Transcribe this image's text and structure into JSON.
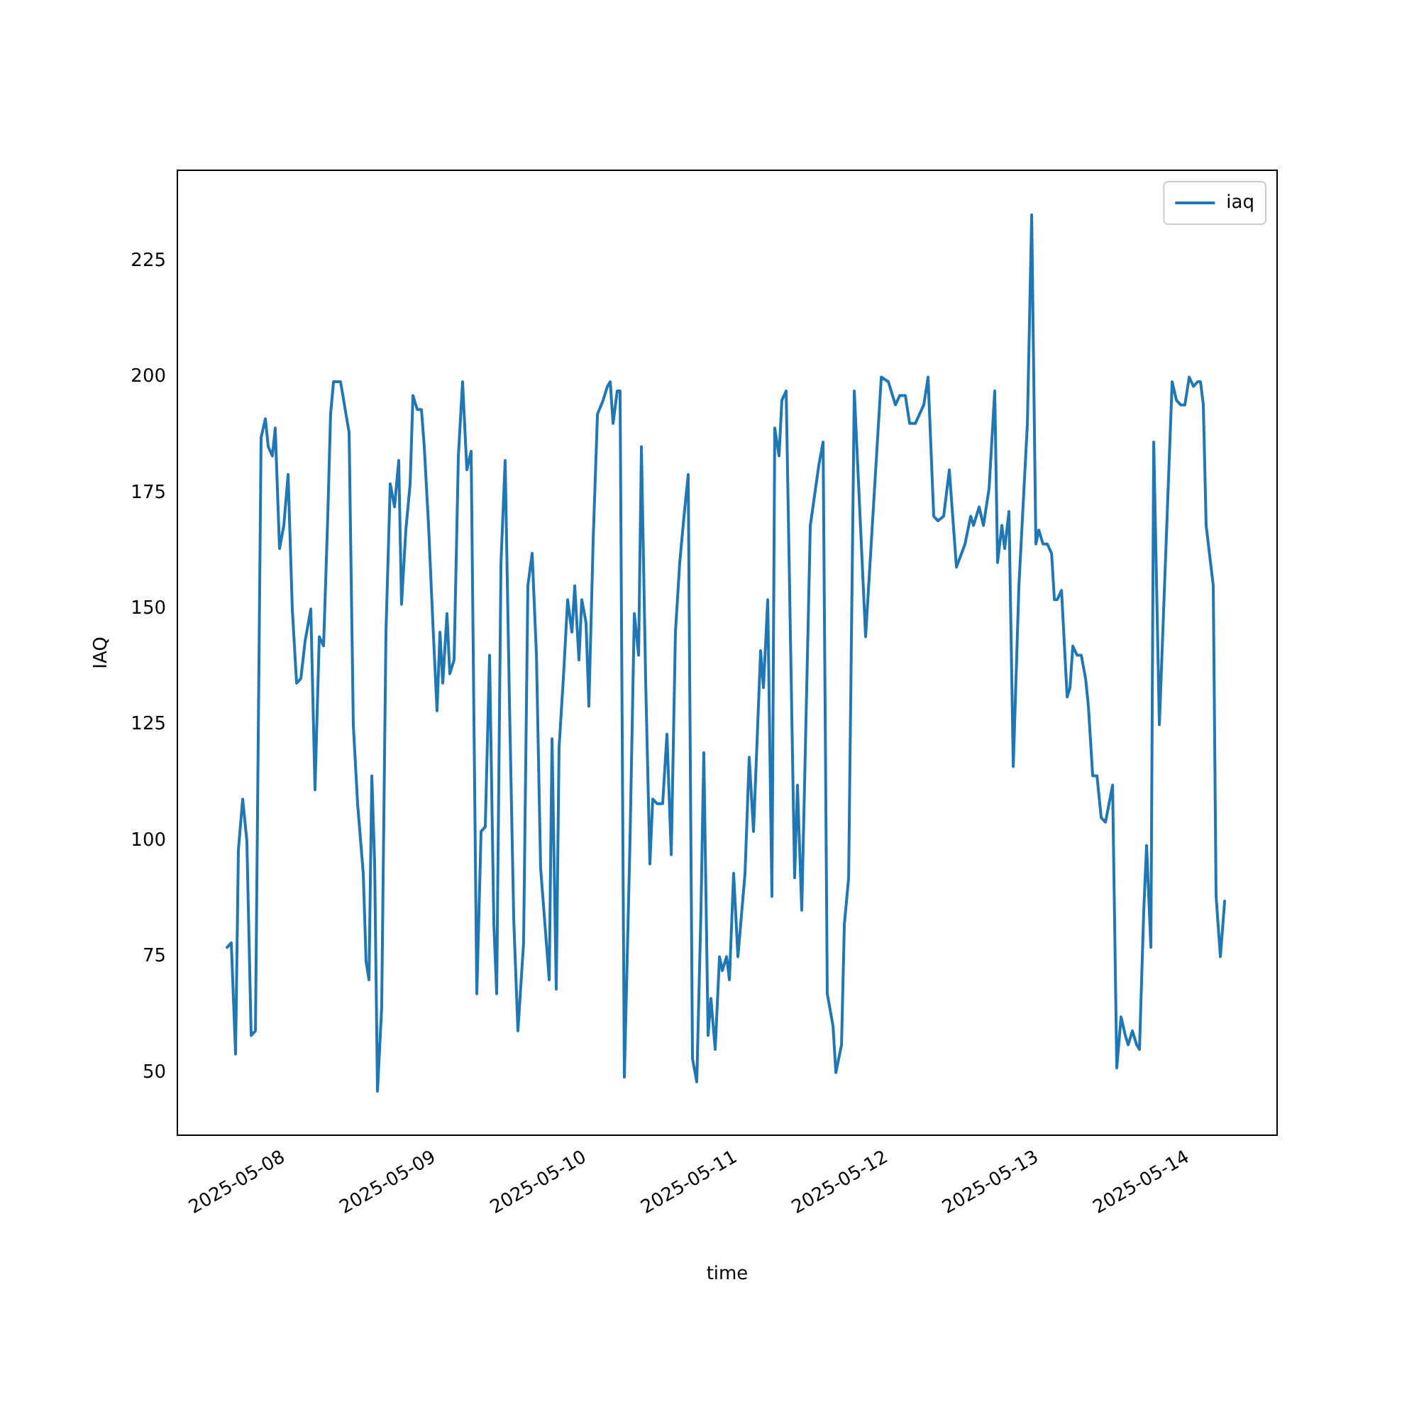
{
  "chart_data": {
    "type": "line",
    "xlabel": "time",
    "ylabel": "IAQ",
    "legend": "top right",
    "grid": false,
    "marker": "none",
    "line_style": "solid",
    "xlim": [
      "2025-05-07T07:03",
      "2025-05-14T14:11"
    ],
    "xticks": [
      "2025-05-08",
      "2025-05-09",
      "2025-05-10",
      "2025-05-11",
      "2025-05-12",
      "2025-05-13",
      "2025-05-14"
    ],
    "ylim": [
      36.5,
      244.6
    ],
    "yticks": [
      50,
      75,
      100,
      125,
      150,
      175,
      200,
      225
    ],
    "series": [
      {
        "name": "iaq",
        "color": "#1f77b4",
        "x": [
          "2025-05-07T14:58",
          "2025-05-07T15:38",
          "2025-05-07T16:19",
          "2025-05-07T16:46",
          "2025-05-07T17:27",
          "2025-05-07T18:07",
          "2025-05-07T18:48",
          "2025-05-07T19:29",
          "2025-05-07T20:23",
          "2025-05-07T21:04",
          "2025-05-07T21:31",
          "2025-05-07T22:11",
          "2025-05-07T22:38",
          "2025-05-07T23:19",
          "2025-05-08T00:00",
          "2025-05-08T00:41",
          "2025-05-08T01:21",
          "2025-05-08T02:02",
          "2025-05-08T02:43",
          "2025-05-08T03:23",
          "2025-05-08T04:18",
          "2025-05-08T04:58",
          "2025-05-08T05:39",
          "2025-05-08T06:20",
          "2025-05-08T07:00",
          "2025-05-08T07:27",
          "2025-05-08T07:55",
          "2025-05-08T09:02",
          "2025-05-08T10:24",
          "2025-05-08T11:04",
          "2025-05-08T11:45",
          "2025-05-08T12:39",
          "2025-05-08T13:06",
          "2025-05-08T13:34",
          "2025-05-08T14:01",
          "2025-05-08T14:28",
          "2025-05-08T14:55",
          "2025-05-08T15:35",
          "2025-05-08T16:16",
          "2025-05-08T16:57",
          "2025-05-08T17:38",
          "2025-05-08T18:18",
          "2025-05-08T18:45",
          "2025-05-08T19:26",
          "2025-05-08T20:07",
          "2025-05-08T20:34",
          "2025-05-08T21:15",
          "2025-05-08T21:55",
          "2025-05-08T22:22",
          "2025-05-08T23:03",
          "2025-05-08T23:44",
          "2025-05-09T00:24",
          "2025-05-09T00:52",
          "2025-05-09T01:19",
          "2025-05-09T01:59",
          "2025-05-09T02:26",
          "2025-05-09T03:07",
          "2025-05-09T03:48",
          "2025-05-09T04:28",
          "2025-05-09T05:09",
          "2025-05-09T05:50",
          "2025-05-09T06:44",
          "2025-05-09T07:25",
          "2025-05-09T08:05",
          "2025-05-09T08:46",
          "2025-05-09T09:27",
          "2025-05-09T09:54",
          "2025-05-09T10:35",
          "2025-05-09T11:15",
          "2025-05-09T11:56",
          "2025-05-09T12:37",
          "2025-05-09T13:17",
          "2025-05-09T14:11",
          "2025-05-09T14:52",
          "2025-05-09T15:33",
          "2025-05-09T16:14",
          "2025-05-09T16:54",
          "2025-05-09T17:35",
          "2025-05-09T18:16",
          "2025-05-09T18:43",
          "2025-05-09T19:23",
          "2025-05-09T19:50",
          "2025-05-09T20:31",
          "2025-05-09T21:12",
          "2025-05-09T21:53",
          "2025-05-09T22:20",
          "2025-05-09T23:00",
          "2025-05-09T23:27",
          "2025-05-10T00:08",
          "2025-05-10T00:35",
          "2025-05-10T01:16",
          "2025-05-10T01:57",
          "2025-05-10T02:51",
          "2025-05-10T03:32",
          "2025-05-10T03:59",
          "2025-05-10T04:26",
          "2025-05-10T05:06",
          "2025-05-10T05:33",
          "2025-05-10T06:14",
          "2025-05-10T07:08",
          "2025-05-10T07:49",
          "2025-05-10T08:30",
          "2025-05-10T08:57",
          "2025-05-10T09:38",
          "2025-05-10T10:18",
          "2025-05-10T10:45",
          "2025-05-10T11:26",
          "2025-05-10T12:20",
          "2025-05-10T13:01",
          "2025-05-10T13:42",
          "2025-05-10T14:22",
          "2025-05-10T15:03",
          "2025-05-10T15:44",
          "2025-05-10T16:24",
          "2025-05-10T17:05",
          "2025-05-10T17:46",
          "2025-05-10T18:26",
          "2025-05-10T18:53",
          "2025-05-10T19:34",
          "2025-05-10T20:01",
          "2025-05-10T20:42",
          "2025-05-10T21:23",
          "2025-05-10T21:50",
          "2025-05-10T22:31",
          "2025-05-10T22:58",
          "2025-05-10T23:38",
          "2025-05-11T00:19",
          "2025-05-11T01:27",
          "2025-05-11T02:07",
          "2025-05-11T02:48",
          "2025-05-11T03:56",
          "2025-05-11T04:23",
          "2025-05-11T05:04",
          "2025-05-11T05:44",
          "2025-05-11T06:11",
          "2025-05-11T06:52",
          "2025-05-11T07:19",
          "2025-05-11T08:00",
          "2025-05-11T09:21",
          "2025-05-11T09:48",
          "2025-05-11T10:29",
          "2025-05-11T11:51",
          "2025-05-11T13:12",
          "2025-05-11T13:53",
          "2025-05-11T14:33",
          "2025-05-11T15:28",
          "2025-05-11T15:55",
          "2025-05-11T16:49",
          "2025-05-11T17:16",
          "2025-05-11T17:57",
          "2025-05-11T18:51",
          "2025-05-11T20:39",
          "2025-05-11T23:09",
          "2025-05-12T00:16",
          "2025-05-12T01:24",
          "2025-05-12T02:05",
          "2025-05-12T02:59",
          "2025-05-12T03:40",
          "2025-05-12T04:34",
          "2025-05-12T05:55",
          "2025-05-12T06:36",
          "2025-05-12T07:30",
          "2025-05-12T08:11",
          "2025-05-12T09:05",
          "2025-05-12T09:59",
          "2025-05-12T11:07",
          "2025-05-12T12:29",
          "2025-05-12T13:23",
          "2025-05-12T13:50",
          "2025-05-12T14:44",
          "2025-05-12T15:25",
          "2025-05-12T16:19",
          "2025-05-12T17:13",
          "2025-05-12T17:40",
          "2025-05-12T18:21",
          "2025-05-12T18:48",
          "2025-05-12T19:29",
          "2025-05-12T20:10",
          "2025-05-12T21:04",
          "2025-05-12T22:25",
          "2025-05-12T23:06",
          "2025-05-12T23:46",
          "2025-05-13T00:14",
          "2025-05-13T00:54",
          "2025-05-13T01:35",
          "2025-05-13T02:16",
          "2025-05-13T02:43",
          "2025-05-13T03:10",
          "2025-05-13T03:51",
          "2025-05-13T04:45",
          "2025-05-13T05:12",
          "2025-05-13T05:39",
          "2025-05-13T06:20",
          "2025-05-13T07:00",
          "2025-05-13T07:41",
          "2025-05-13T08:08",
          "2025-05-13T08:49",
          "2025-05-13T09:30",
          "2025-05-13T10:10",
          "2025-05-13T10:51",
          "2025-05-13T11:59",
          "2025-05-13T12:39",
          "2025-05-13T13:20",
          "2025-05-13T14:01",
          "2025-05-13T14:28",
          "2025-05-13T15:08",
          "2025-05-13T15:49",
          "2025-05-13T16:16",
          "2025-05-13T16:57",
          "2025-05-13T17:24",
          "2025-05-13T18:05",
          "2025-05-13T18:32",
          "2025-05-13T19:26",
          "2025-05-13T21:28",
          "2025-05-13T22:09",
          "2025-05-13T22:50",
          "2025-05-13T23:30",
          "2025-05-14T00:11",
          "2025-05-14T00:52",
          "2025-05-14T01:32",
          "2025-05-14T01:59",
          "2025-05-14T02:26",
          "2025-05-14T02:53",
          "2025-05-14T04:01",
          "2025-05-14T04:28",
          "2025-05-14T05:09",
          "2025-05-14T05:50"
        ],
        "values": [
          77,
          78,
          54,
          98,
          109,
          100,
          58,
          59,
          187,
          191,
          185,
          183,
          189,
          163,
          168,
          179,
          150,
          134,
          135,
          143,
          150,
          111,
          144,
          142,
          170,
          192,
          199,
          199,
          188,
          125,
          108,
          93,
          74,
          70,
          114,
          95,
          46,
          64,
          145,
          177,
          172,
          182,
          151,
          167,
          177,
          196,
          193,
          193,
          185,
          168,
          147,
          128,
          145,
          134,
          149,
          136,
          139,
          183,
          199,
          180,
          184,
          67,
          102,
          103,
          140,
          82,
          67,
          160,
          182,
          130,
          83,
          59,
          78,
          155,
          162,
          140,
          94,
          82,
          70,
          122,
          68,
          120,
          135,
          152,
          145,
          155,
          139,
          152,
          147,
          129,
          165,
          192,
          195,
          198,
          199,
          190,
          197,
          197,
          49,
          100,
          149,
          140,
          185,
          134,
          95,
          109,
          108,
          108,
          123,
          97,
          145,
          160,
          170,
          179,
          53,
          48,
          85,
          119,
          58,
          66,
          55,
          75,
          72,
          75,
          70,
          93,
          75,
          93,
          118,
          102,
          141,
          133,
          152,
          88,
          189,
          183,
          195,
          197,
          92,
          112,
          85,
          168,
          181,
          186,
          67,
          60,
          50,
          56,
          82,
          92,
          197,
          144,
          200,
          199,
          194,
          196,
          196,
          190,
          190,
          194,
          200,
          170,
          169,
          170,
          180,
          159,
          164,
          170,
          168,
          172,
          168,
          176,
          197,
          160,
          168,
          163,
          171,
          116,
          155,
          190,
          235,
          164,
          167,
          164,
          164,
          162,
          152,
          152,
          154,
          131,
          133,
          142,
          140,
          140,
          135,
          129,
          114,
          114,
          105,
          104,
          112,
          51,
          62,
          58,
          56,
          59,
          56,
          55,
          85,
          99,
          77,
          186,
          125,
          199,
          195,
          194,
          194,
          200,
          198,
          199,
          199,
          194,
          168,
          155,
          88,
          75,
          87
        ]
      }
    ]
  }
}
